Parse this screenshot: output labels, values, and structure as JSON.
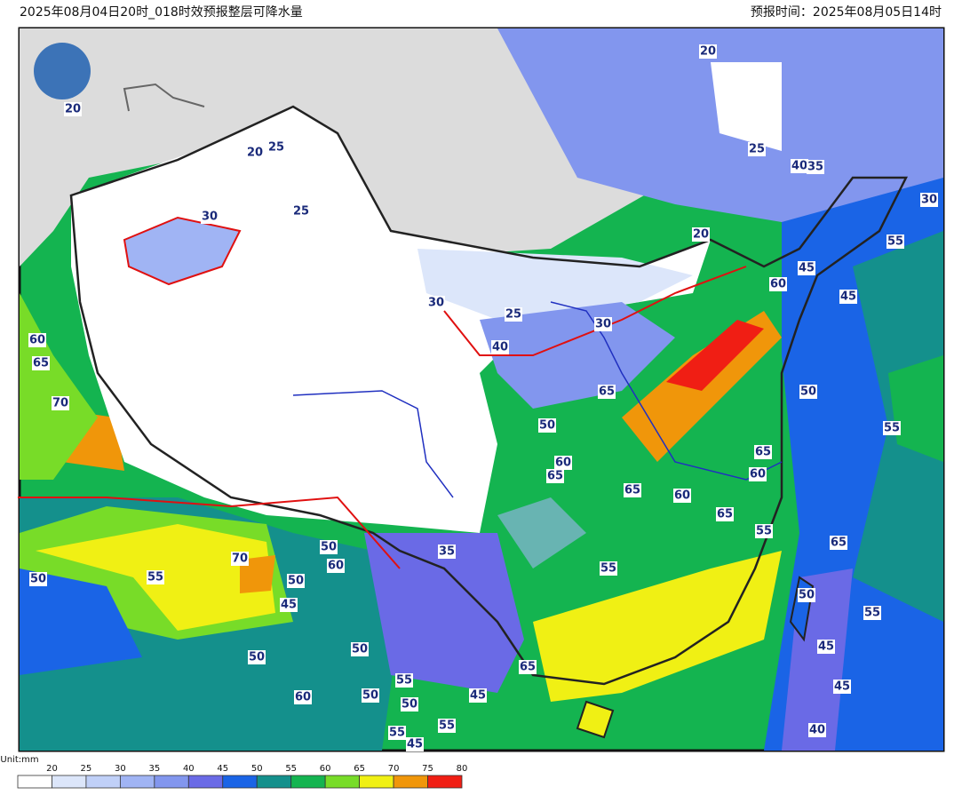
{
  "header": {
    "title": "2025年08月04日20时_018时效预报整层可降水量",
    "forecast_time": "预报时间：2025年08月05日14时"
  },
  "map": {
    "contour_labels": [
      20,
      20,
      25,
      30,
      25,
      20,
      25,
      40,
      35,
      30,
      20,
      55,
      45,
      60,
      45,
      30,
      25,
      30,
      40,
      60,
      65,
      70,
      65,
      50,
      50,
      55,
      65,
      60,
      65,
      60,
      65,
      60,
      65,
      55,
      35,
      50,
      70,
      60,
      65,
      50,
      55,
      50,
      55,
      45,
      50,
      55,
      50,
      50,
      65,
      45,
      55,
      45,
      60,
      50,
      50,
      45,
      55,
      55,
      40,
      45
    ]
  },
  "legend": {
    "unit": "Unit:mm",
    "ticks": [
      20,
      25,
      30,
      35,
      40,
      45,
      50,
      55,
      60,
      65,
      70,
      75,
      80
    ],
    "colors": [
      "#ffffff",
      "#dce6fa",
      "#c0d0f8",
      "#a0b4f4",
      "#8296ee",
      "#6a6ae6",
      "#1a64e6",
      "#14908c",
      "#14b450",
      "#78dc28",
      "#f0f014",
      "#f0960a",
      "#f01e14"
    ]
  }
}
